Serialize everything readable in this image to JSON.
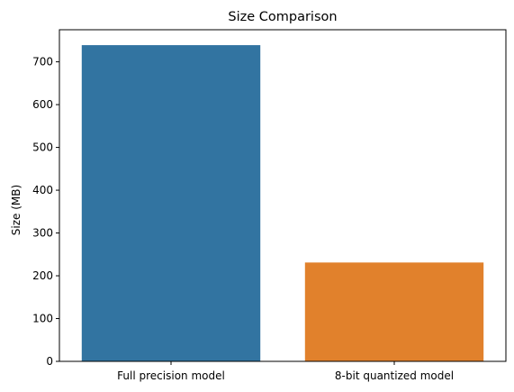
{
  "chart_data": {
    "type": "bar",
    "title": "Size Comparison",
    "xlabel": "",
    "ylabel": "Size (MB)",
    "categories": [
      "Full precision model",
      "8-bit quantized model"
    ],
    "values": [
      739,
      231
    ],
    "colors": [
      "#3274a1",
      "#e1812c"
    ],
    "ylim": [
      0,
      775
    ],
    "yticks": [
      0,
      100,
      200,
      300,
      400,
      500,
      600,
      700
    ],
    "grid": false,
    "legend": "none"
  }
}
